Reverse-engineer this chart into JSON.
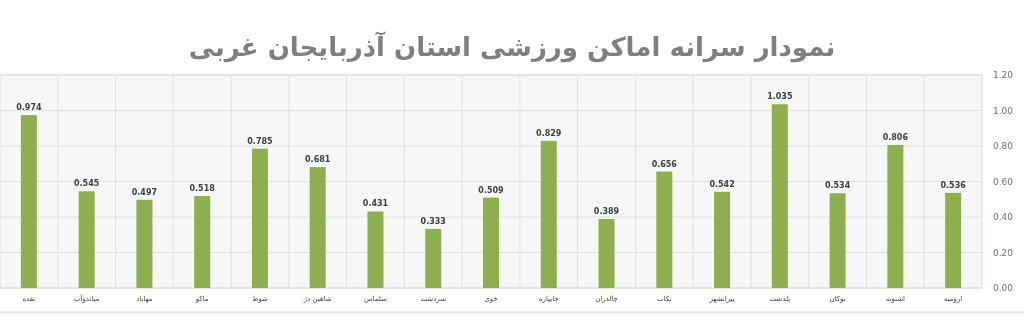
{
  "chart_data": {
    "type": "bar",
    "title": "نمودار سرانه اماکن ورزشی استان آذربایجان غربی",
    "categories": [
      "نقده",
      "میاندوآب",
      "مهاباد",
      "ماکو",
      "شوط",
      "شاهین دژ",
      "سلماس",
      "سردشت",
      "خوی",
      "چایپاره",
      "چالدران",
      "تکاب",
      "پیرانشهر",
      "پلدشت",
      "بوکان",
      "اشنویه",
      "ارومیه"
    ],
    "values": [
      0.974,
      0.545,
      0.497,
      0.518,
      0.785,
      0.681,
      0.431,
      0.333,
      0.509,
      0.829,
      0.389,
      0.656,
      0.542,
      1.035,
      0.534,
      0.806,
      0.536
    ],
    "color": "#8db04e",
    "data_labels": true,
    "grid": true,
    "ylim": [
      0,
      1.2
    ],
    "yticks": [
      {
        "value": 0,
        "label": "0.00"
      },
      {
        "value": 0.2,
        "label": "0.20"
      },
      {
        "value": 0.4,
        "label": "0.40"
      },
      {
        "value": 0.6,
        "label": "0.60"
      },
      {
        "value": 0.8,
        "label": "0.80"
      },
      {
        "value": 1.0,
        "label": "1.00"
      },
      {
        "value": 1.2,
        "label": "1.20"
      }
    ]
  }
}
